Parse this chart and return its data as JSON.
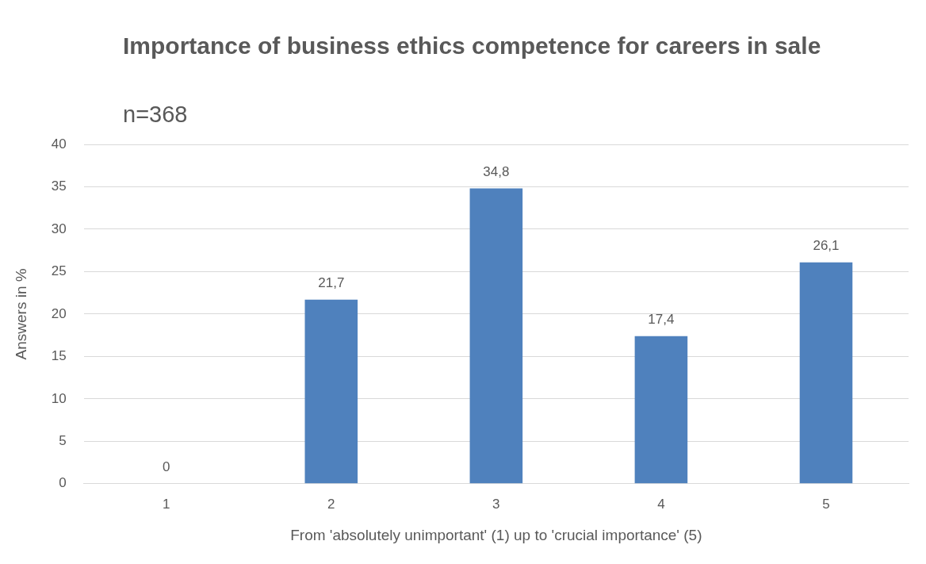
{
  "chart_data": {
    "type": "bar",
    "title": "Importance of business ethics competence for careers in sale",
    "subtitle": "n=368",
    "xlabel": "From 'absolutely unimportant' (1) up to 'crucial importance' (5)",
    "ylabel": "Answers in %",
    "categories": [
      "1",
      "2",
      "3",
      "4",
      "5"
    ],
    "values": [
      0,
      21.7,
      34.8,
      17.4,
      26.1
    ],
    "value_labels": [
      "0",
      "21,7",
      "34,8",
      "17,4",
      "26,1"
    ],
    "color": "#4f81bd",
    "ylim": [
      0,
      40
    ],
    "yticks": [
      0,
      5,
      10,
      15,
      20,
      25,
      30,
      35,
      40
    ],
    "grid": "y"
  }
}
